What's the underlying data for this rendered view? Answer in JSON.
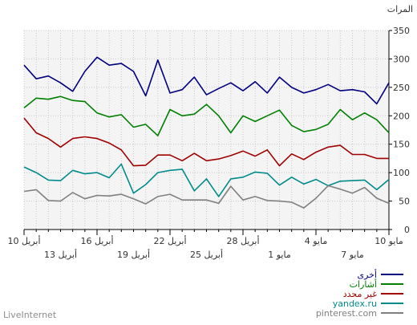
{
  "chart_data": {
    "type": "line",
    "ylabel": "المرات",
    "ylim": [
      0,
      350
    ],
    "yticks": [
      0,
      50,
      100,
      150,
      200,
      250,
      300,
      350
    ],
    "grid": true,
    "legend_position": "bottom-right",
    "x_tick_labels_row1": [
      "10 مايو",
      "4 مايو",
      "28 أبريل",
      "22 أبريل",
      "16 أبريل",
      "10 أبريل"
    ],
    "x_tick_labels_row2": [
      "7 مايو",
      "1 مايو",
      "25 أبريل",
      "19 أبريل",
      "13 أبريل"
    ],
    "series": [
      {
        "name": "أخرى",
        "color": "#000080",
        "values": [
          258,
          221,
          242,
          246,
          244,
          255,
          246,
          240,
          250,
          268,
          240,
          260,
          244,
          258,
          248,
          237,
          268,
          246,
          240,
          298,
          235,
          278,
          292,
          289,
          303,
          278,
          243,
          258,
          270,
          265,
          289
        ]
      },
      {
        "name": "أشارات",
        "color": "#008000",
        "values": [
          170,
          193,
          205,
          193,
          211,
          185,
          176,
          172,
          183,
          210,
          200,
          190,
          200,
          170,
          200,
          220,
          203,
          200,
          211,
          165,
          185,
          180,
          202,
          198,
          205,
          225,
          227,
          234,
          229,
          231,
          214
        ]
      },
      {
        "name": "غير محدد",
        "color": "#a00000",
        "values": [
          125,
          125,
          132,
          132,
          148,
          145,
          136,
          123,
          133,
          112,
          140,
          129,
          138,
          130,
          124,
          121,
          134,
          121,
          131,
          131,
          113,
          112,
          140,
          152,
          160,
          163,
          160,
          145,
          160,
          170,
          196
        ]
      },
      {
        "name": "yandex.ru",
        "color": "#008b8b",
        "values": [
          88,
          70,
          87,
          86,
          85,
          77,
          88,
          80,
          92,
          78,
          99,
          101,
          92,
          89,
          58,
          89,
          68,
          106,
          104,
          100,
          79,
          64,
          115,
          91,
          100,
          98,
          104,
          86,
          87,
          100,
          110
        ]
      },
      {
        "name": "pinterest.com",
        "color": "#808080",
        "values": [
          46,
          55,
          74,
          64,
          71,
          77,
          55,
          38,
          48,
          50,
          51,
          58,
          52,
          76,
          46,
          52,
          52,
          52,
          62,
          58,
          45,
          54,
          62,
          59,
          60,
          54,
          65,
          50,
          51,
          70,
          67
        ]
      }
    ]
  },
  "footer": {
    "left": "LiveInternet",
    "right": "pinterest.com"
  }
}
